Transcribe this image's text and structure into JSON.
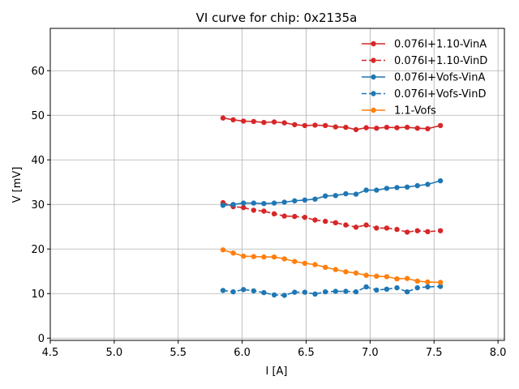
{
  "chart_data": {
    "type": "line",
    "title": "VI curve for chip: 0x2135a",
    "xlabel": "I [A]",
    "ylabel": "V [mV]",
    "xlim": [
      4.5,
      8.05
    ],
    "ylim": [
      -0.5,
      69.5
    ],
    "xticks": [
      4.5,
      5.0,
      5.5,
      6.0,
      6.5,
      7.0,
      7.5,
      8.0
    ],
    "xtick_labels": [
      "4.5",
      "5.0",
      "5.5",
      "6.0",
      "6.5",
      "7.0",
      "7.5",
      "8.0"
    ],
    "yticks": [
      0,
      10,
      20,
      30,
      40,
      50,
      60
    ],
    "ytick_labels": [
      "0",
      "10",
      "20",
      "30",
      "40",
      "50",
      "60"
    ],
    "grid": true,
    "legend_position": "top-right",
    "x": [
      5.85,
      5.93,
      6.01,
      6.09,
      6.17,
      6.25,
      6.33,
      6.41,
      6.49,
      6.57,
      6.65,
      6.73,
      6.81,
      6.89,
      6.97,
      7.05,
      7.13,
      7.21,
      7.29,
      7.37,
      7.45,
      7.55
    ],
    "series": [
      {
        "name": "0.076I+1.10-VinA",
        "color": "#d62728",
        "dashed": false,
        "values": [
          49.4,
          49.0,
          48.7,
          48.6,
          48.4,
          48.5,
          48.3,
          47.9,
          47.7,
          47.8,
          47.7,
          47.4,
          47.3,
          46.8,
          47.2,
          47.1,
          47.3,
          47.2,
          47.3,
          47.1,
          47.0,
          47.7
        ]
      },
      {
        "name": "0.076I+1.10-VinD",
        "color": "#d62728",
        "dashed": true,
        "values": [
          30.4,
          29.5,
          29.3,
          28.7,
          28.5,
          27.9,
          27.4,
          27.3,
          27.1,
          26.5,
          26.2,
          25.9,
          25.4,
          24.9,
          25.4,
          24.7,
          24.7,
          24.4,
          23.8,
          24.1,
          23.9,
          24.1
        ]
      },
      {
        "name": "0.076I+Vofs-VinA",
        "color": "#1f77b4",
        "dashed": false,
        "values": [
          29.8,
          30.0,
          30.3,
          30.3,
          30.2,
          30.3,
          30.5,
          30.8,
          31.0,
          31.2,
          31.9,
          32.0,
          32.4,
          32.3,
          33.2,
          33.2,
          33.6,
          33.8,
          33.9,
          34.2,
          34.5,
          35.3
        ]
      },
      {
        "name": "0.076I+Vofs-VinD",
        "color": "#1f77b4",
        "dashed": true,
        "values": [
          10.7,
          10.4,
          10.9,
          10.6,
          10.2,
          9.7,
          9.6,
          10.3,
          10.3,
          9.9,
          10.4,
          10.5,
          10.5,
          10.4,
          11.5,
          10.8,
          11.0,
          11.3,
          10.4,
          11.3,
          11.5,
          11.6
        ]
      },
      {
        "name": "1.1-Vofs",
        "color": "#ff7f0e",
        "dashed": false,
        "values": [
          19.8,
          19.1,
          18.4,
          18.3,
          18.2,
          18.2,
          17.8,
          17.2,
          16.8,
          16.5,
          15.9,
          15.4,
          14.9,
          14.6,
          14.1,
          13.9,
          13.8,
          13.3,
          13.4,
          12.8,
          12.6,
          12.5
        ]
      }
    ]
  }
}
